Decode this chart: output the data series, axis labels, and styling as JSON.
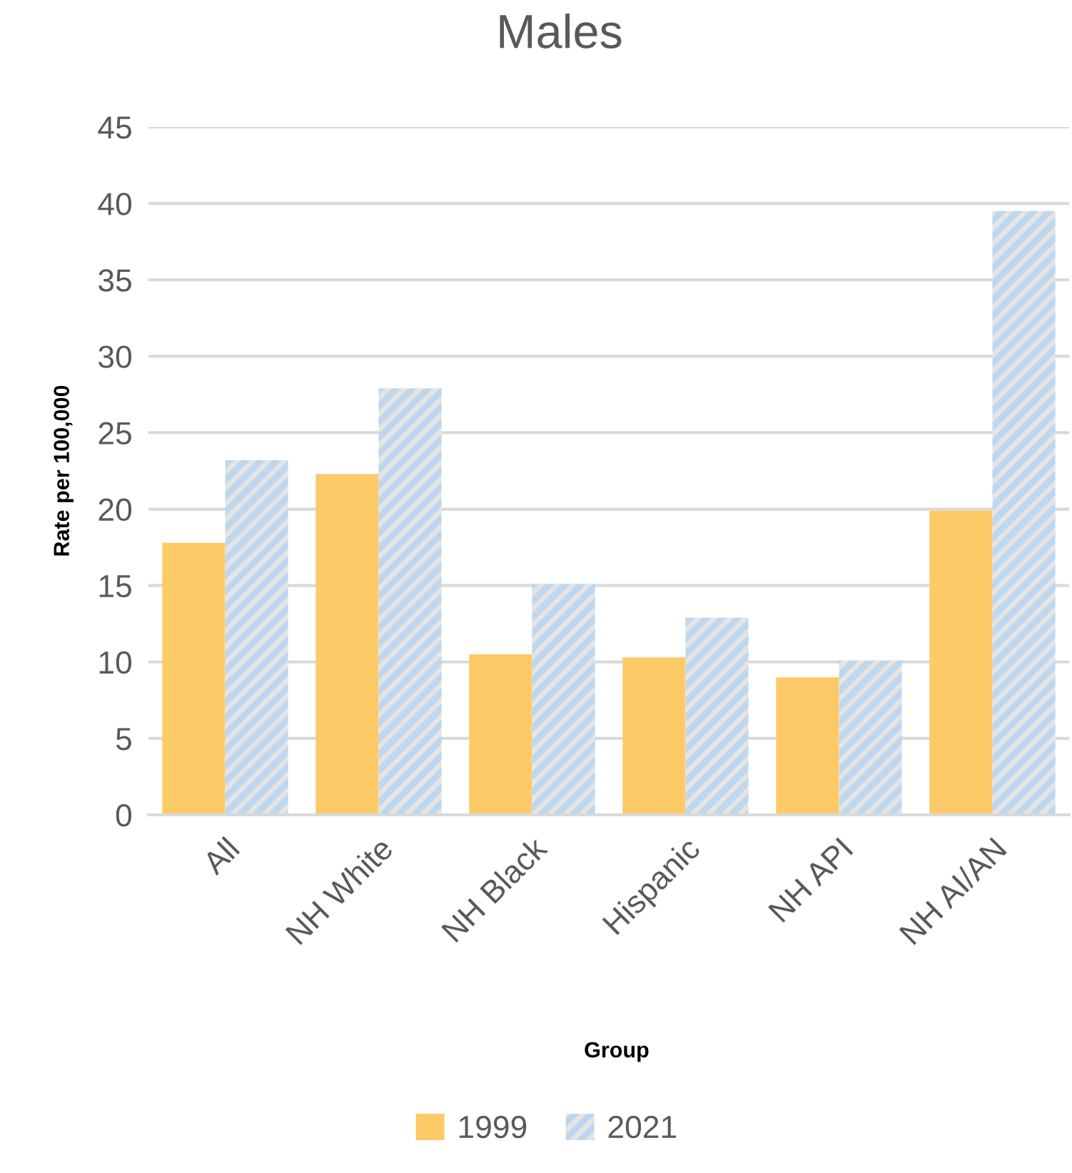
{
  "chart_data": {
    "type": "bar",
    "title": "Males",
    "xlabel": "Group",
    "ylabel": "Rate per 100,000",
    "categories": [
      "All",
      "NH White",
      "NH Black",
      "Hispanic",
      "NH API",
      "NH AI/AN"
    ],
    "series": [
      {
        "name": "1999",
        "color": "#fdca68",
        "values": [
          17.8,
          22.3,
          10.5,
          10.3,
          9.0,
          19.9
        ]
      },
      {
        "name": "2021",
        "color": "#bdd7ee",
        "values": [
          23.2,
          27.9,
          15.1,
          12.9,
          10.1,
          39.5
        ]
      }
    ],
    "ylim": [
      0,
      45
    ],
    "yticks": [
      0,
      5,
      10,
      15,
      20,
      25,
      30,
      35,
      40,
      45
    ],
    "grid": "y",
    "legend": "bottom"
  }
}
